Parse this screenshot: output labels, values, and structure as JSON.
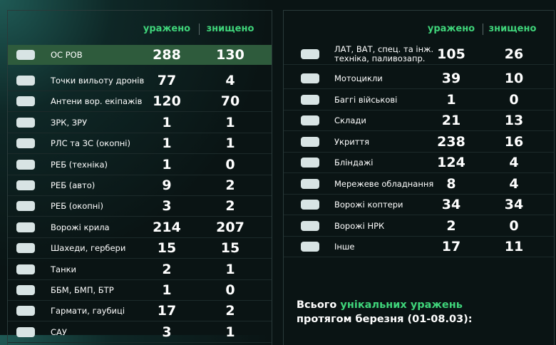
{
  "headers": {
    "hit": "уражено",
    "destroyed": "знищено"
  },
  "left": {
    "rows": [
      {
        "label": "ОС РОВ",
        "hit": 288,
        "destroyed": 130
      },
      {
        "label": "Точки вильоту дронів",
        "hit": 77,
        "destroyed": 4
      },
      {
        "label": "Антени вор. екіпажів",
        "hit": 120,
        "destroyed": 70
      },
      {
        "label": "ЗРК, ЗРУ",
        "hit": 1,
        "destroyed": 1
      },
      {
        "label": "РЛС та ЗС (окопні)",
        "hit": 1,
        "destroyed": 1
      },
      {
        "label": "РЕБ (техніка)",
        "hit": 1,
        "destroyed": 0
      },
      {
        "label": "РЕБ (авто)",
        "hit": 9,
        "destroyed": 2
      },
      {
        "label": "РЕБ (окопні)",
        "hit": 3,
        "destroyed": 2
      },
      {
        "label": "Ворожі крила",
        "hit": 214,
        "destroyed": 207
      },
      {
        "label": "Шахеди, гербери",
        "hit": 15,
        "destroyed": 15
      },
      {
        "label": "Танки",
        "hit": 2,
        "destroyed": 1
      },
      {
        "label": "ББМ, БМП, БТР",
        "hit": 1,
        "destroyed": 0
      },
      {
        "label": "Гармати, гаубиці",
        "hit": 17,
        "destroyed": 2
      },
      {
        "label": "САУ",
        "hit": 3,
        "destroyed": 1
      }
    ]
  },
  "right": {
    "rows": [
      {
        "label": "ЛАТ, ВАТ, спец. та інж. техніка, паливозапр.",
        "hit": 105,
        "destroyed": 26
      },
      {
        "label": "Мотоцикли",
        "hit": 39,
        "destroyed": 10
      },
      {
        "label": "Баггі військові",
        "hit": 1,
        "destroyed": 0
      },
      {
        "label": "Склади",
        "hit": 21,
        "destroyed": 13
      },
      {
        "label": "Укриття",
        "hit": 238,
        "destroyed": 16
      },
      {
        "label": "Бліндажі",
        "hit": 124,
        "destroyed": 4
      },
      {
        "label": "Мережеве обладнання",
        "hit": 8,
        "destroyed": 4
      },
      {
        "label": "Ворожі коптери",
        "hit": 34,
        "destroyed": 34
      },
      {
        "label": "Ворожі НРК",
        "hit": 2,
        "destroyed": 0
      },
      {
        "label": "Інше",
        "hit": 17,
        "destroyed": 11
      }
    ]
  },
  "summary": {
    "prefix": "Всього",
    "highlight": "унікальних уражень",
    "line2": "протягом березня (01-08.03):"
  }
}
